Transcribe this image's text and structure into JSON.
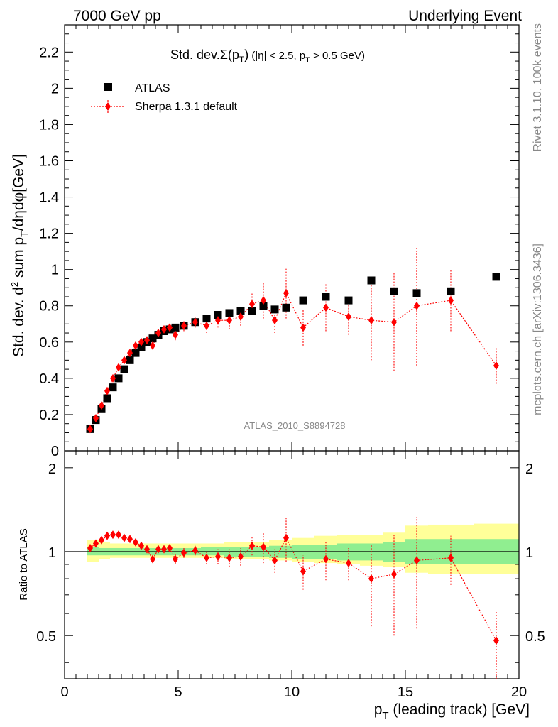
{
  "header": {
    "left": "7000 GeV pp",
    "right": "Underlying Event"
  },
  "side_labels": {
    "rivet": "Rivet 3.1.10,  100k events",
    "mcplots": "mcplots.cern.ch [arXiv:1306.3436]"
  },
  "watermark": "ATLAS_2010_S8894728",
  "colors": {
    "atlas": "#000000",
    "sherpa": "#ff0000",
    "band_inner": "#90ee90",
    "band_outer": "#ffff99"
  },
  "chart_data": [
    {
      "type": "scatter",
      "title": "Std. dev. Σ(p_T) (|η| < 2.5, p_T > 0.5 GeV)",
      "ylabel": "Std. dev. d² sum p_T/dηdφ[GeV]",
      "xlim": [
        0,
        20
      ],
      "ylim": [
        0,
        2.35
      ],
      "yticks": [
        0.2,
        0.4,
        0.6,
        0.8,
        1,
        1.2,
        1.4,
        1.6,
        1.8,
        2,
        2.2
      ],
      "xlabel": "",
      "series": [
        {
          "name": "ATLAS",
          "marker": "square",
          "x": [
            1.125,
            1.375,
            1.625,
            1.875,
            2.125,
            2.375,
            2.625,
            2.875,
            3.125,
            3.375,
            3.625,
            3.875,
            4.125,
            4.375,
            4.625,
            4.875,
            5.25,
            5.75,
            6.25,
            6.75,
            7.25,
            7.75,
            8.25,
            8.75,
            9.25,
            9.75,
            10.5,
            11.5,
            12.5,
            13.5,
            14.5,
            15.5,
            17,
            19
          ],
          "y": [
            0.12,
            0.17,
            0.23,
            0.29,
            0.35,
            0.4,
            0.45,
            0.5,
            0.54,
            0.57,
            0.6,
            0.62,
            0.64,
            0.66,
            0.67,
            0.68,
            0.69,
            0.71,
            0.73,
            0.75,
            0.76,
            0.77,
            0.77,
            0.8,
            0.78,
            0.79,
            0.83,
            0.85,
            0.83,
            0.94,
            0.88,
            0.87,
            0.88,
            0.96
          ]
        },
        {
          "name": "Sherpa 1.3.1 default",
          "marker": "diamond",
          "x": [
            1.125,
            1.375,
            1.625,
            1.875,
            2.125,
            2.375,
            2.625,
            2.875,
            3.125,
            3.375,
            3.625,
            3.875,
            4.125,
            4.375,
            4.625,
            4.875,
            5.25,
            5.75,
            6.25,
            6.75,
            7.25,
            7.75,
            8.25,
            8.75,
            9.25,
            9.75,
            10.5,
            11.5,
            12.5,
            13.5,
            14.5,
            15.5,
            17,
            19
          ],
          "y": [
            0.12,
            0.18,
            0.25,
            0.33,
            0.4,
            0.46,
            0.5,
            0.54,
            0.58,
            0.6,
            0.61,
            0.58,
            0.65,
            0.67,
            0.68,
            0.64,
            0.69,
            0.71,
            0.69,
            0.72,
            0.72,
            0.74,
            0.81,
            0.83,
            0.72,
            0.87,
            0.68,
            0.79,
            0.74,
            0.72,
            0.71,
            0.8,
            0.83,
            0.47
          ],
          "err": [
            0.005,
            0.005,
            0.005,
            0.005,
            0.005,
            0.006,
            0.007,
            0.008,
            0.01,
            0.01,
            0.012,
            0.012,
            0.015,
            0.015,
            0.018,
            0.03,
            0.03,
            0.03,
            0.04,
            0.04,
            0.05,
            0.05,
            0.06,
            0.1,
            0.07,
            0.14,
            0.1,
            0.13,
            0.1,
            0.22,
            0.27,
            0.33,
            0.17,
            0.1
          ]
        }
      ]
    },
    {
      "type": "scatter",
      "ylabel": "Ratio to ATLAS",
      "xlabel": "p_T (leading track) [GeV]",
      "xlim": [
        0,
        20
      ],
      "ylim": [
        0.35,
        2.3
      ],
      "xticks": [
        0,
        5,
        10,
        15,
        20
      ],
      "yticks": [
        0.5,
        1,
        2
      ],
      "reference_line": 1,
      "band_edges": [
        1.0,
        1.5,
        2.0,
        2.5,
        3.0,
        3.5,
        4.0,
        4.5,
        5.0,
        6.0,
        7.0,
        8.0,
        9.0,
        10.0,
        11.0,
        12.0,
        13.0,
        14.0,
        15.0,
        16.0,
        18.0,
        20.0
      ],
      "band_inner": {
        "low": [
          0.97,
          0.97,
          0.97,
          0.97,
          0.97,
          0.97,
          0.97,
          0.97,
          0.97,
          0.97,
          0.96,
          0.96,
          0.95,
          0.94,
          0.94,
          0.93,
          0.93,
          0.92,
          0.9,
          0.9,
          0.9
        ],
        "high": [
          1.04,
          1.03,
          1.03,
          1.03,
          1.03,
          1.03,
          1.03,
          1.03,
          1.03,
          1.04,
          1.04,
          1.04,
          1.05,
          1.06,
          1.06,
          1.07,
          1.07,
          1.08,
          1.11,
          1.11,
          1.11
        ]
      },
      "band_outer": {
        "low": [
          0.92,
          0.94,
          0.95,
          0.95,
          0.95,
          0.95,
          0.95,
          0.95,
          0.95,
          0.95,
          0.94,
          0.94,
          0.93,
          0.92,
          0.91,
          0.9,
          0.89,
          0.88,
          0.84,
          0.83,
          0.83
        ],
        "high": [
          1.1,
          1.08,
          1.07,
          1.07,
          1.07,
          1.07,
          1.07,
          1.07,
          1.07,
          1.07,
          1.08,
          1.08,
          1.1,
          1.12,
          1.14,
          1.15,
          1.15,
          1.17,
          1.24,
          1.25,
          1.26
        ]
      },
      "series": [
        {
          "name": "Sherpa 1.3.1 default",
          "x": [
            1.125,
            1.375,
            1.625,
            1.875,
            2.125,
            2.375,
            2.625,
            2.875,
            3.125,
            3.375,
            3.625,
            3.875,
            4.125,
            4.375,
            4.625,
            4.875,
            5.25,
            5.75,
            6.25,
            6.75,
            7.25,
            7.75,
            8.25,
            8.75,
            9.25,
            9.75,
            10.5,
            11.5,
            12.5,
            13.5,
            14.5,
            15.5,
            17,
            19
          ],
          "y": [
            1.03,
            1.07,
            1.1,
            1.14,
            1.15,
            1.15,
            1.12,
            1.11,
            1.08,
            1.05,
            1.02,
            0.94,
            1.02,
            1.02,
            1.03,
            0.94,
            0.99,
            1.01,
            0.95,
            0.96,
            0.95,
            0.96,
            1.05,
            1.04,
            0.93,
            1.12,
            0.85,
            0.94,
            0.91,
            0.8,
            0.83,
            0.93,
            0.95,
            0.48
          ],
          "err": [
            0.01,
            0.01,
            0.01,
            0.01,
            0.01,
            0.01,
            0.01,
            0.01,
            0.02,
            0.02,
            0.02,
            0.02,
            0.02,
            0.02,
            0.03,
            0.04,
            0.04,
            0.04,
            0.05,
            0.06,
            0.07,
            0.07,
            0.08,
            0.13,
            0.09,
            0.2,
            0.12,
            0.15,
            0.12,
            0.26,
            0.33,
            0.4,
            0.19,
            0.13
          ]
        }
      ]
    }
  ]
}
